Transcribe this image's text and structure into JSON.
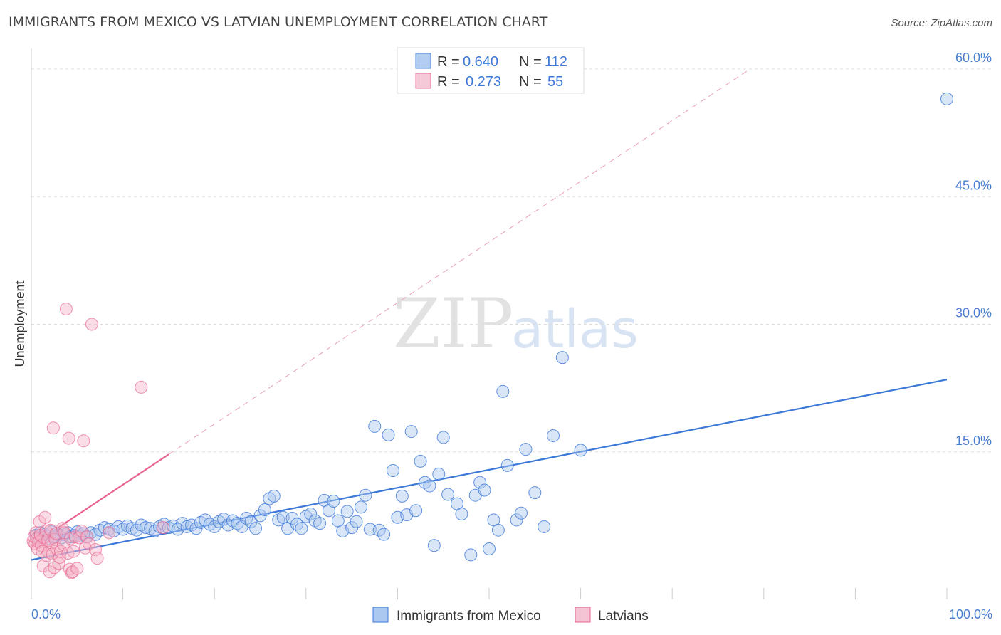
{
  "title": "IMMIGRANTS FROM MEXICO VS LATVIAN UNEMPLOYMENT CORRELATION CHART",
  "source": "Source: ZipAtlas.com",
  "watermark": {
    "left": "ZIP",
    "right": "atlas"
  },
  "colors": {
    "blue": "#3c78d8",
    "blue_fill": "#aac8f0",
    "pink": "#e8648e",
    "pink_fill": "#f5b4c8",
    "grid": "#dddddd",
    "tick_label": "#4a7fd0"
  },
  "legend": {
    "rows": [
      {
        "r_label": "R =",
        "r_value": "0.640",
        "n_label": "N =",
        "n_value": "112"
      },
      {
        "r_label": "R =",
        "r_value": "0.273",
        "n_label": "N =",
        "n_value": "55"
      }
    ]
  },
  "chart_data": {
    "type": "scatter",
    "title": "IMMIGRANTS FROM MEXICO VS LATVIAN UNEMPLOYMENT CORRELATION CHART",
    "xlabel": "",
    "ylabel": "Unemployment",
    "xlim": [
      0,
      100
    ],
    "ylim": [
      0,
      62
    ],
    "x_tick_labels": [
      "0.0%",
      "100.0%"
    ],
    "y_ticks": [
      15,
      30,
      45,
      60
    ],
    "y_tick_labels": [
      "15.0%",
      "30.0%",
      "45.0%",
      "60.0%"
    ],
    "grid": true,
    "legend_position": "top-center",
    "series": [
      {
        "name": "Immigrants from Mexico",
        "color": "#3c78d8",
        "R": 0.64,
        "N": 112,
        "trend": {
          "x": [
            0,
            100
          ],
          "y": [
            2.3,
            23.5
          ],
          "style": "solid"
        },
        "points": [
          [
            0.5,
            5.2
          ],
          [
            0.8,
            4.9
          ],
          [
            1.0,
            5.5
          ],
          [
            1.2,
            5.0
          ],
          [
            1.5,
            5.3
          ],
          [
            1.8,
            4.8
          ],
          [
            2.0,
            5.1
          ],
          [
            2.2,
            5.6
          ],
          [
            2.5,
            5.0
          ],
          [
            2.8,
            5.4
          ],
          [
            3.0,
            5.2
          ],
          [
            3.3,
            4.9
          ],
          [
            3.6,
            5.3
          ],
          [
            4.0,
            5.5
          ],
          [
            4.3,
            5.0
          ],
          [
            4.7,
            5.2
          ],
          [
            5.0,
            5.6
          ],
          [
            5.3,
            5.1
          ],
          [
            5.7,
            5.4
          ],
          [
            6.0,
            5.0
          ],
          [
            6.5,
            5.5
          ],
          [
            7.0,
            5.3
          ],
          [
            7.5,
            5.8
          ],
          [
            8.0,
            6.1
          ],
          [
            8.5,
            5.9
          ],
          [
            9.0,
            5.7
          ],
          [
            9.5,
            6.2
          ],
          [
            10.0,
            5.9
          ],
          [
            10.5,
            6.3
          ],
          [
            11.0,
            6.0
          ],
          [
            11.5,
            5.8
          ],
          [
            12.0,
            6.4
          ],
          [
            12.5,
            6.1
          ],
          [
            13.0,
            6.0
          ],
          [
            13.5,
            5.7
          ],
          [
            14.0,
            6.2
          ],
          [
            14.5,
            6.5
          ],
          [
            15.0,
            6.1
          ],
          [
            15.5,
            6.3
          ],
          [
            16.0,
            5.9
          ],
          [
            16.5,
            6.6
          ],
          [
            17.0,
            6.2
          ],
          [
            17.5,
            6.4
          ],
          [
            18.0,
            6.0
          ],
          [
            18.5,
            6.7
          ],
          [
            19.0,
            7.0
          ],
          [
            19.5,
            6.5
          ],
          [
            20.0,
            6.2
          ],
          [
            20.5,
            6.8
          ],
          [
            21.0,
            7.1
          ],
          [
            21.5,
            6.4
          ],
          [
            22.0,
            6.9
          ],
          [
            22.5,
            6.6
          ],
          [
            23.0,
            6.2
          ],
          [
            23.5,
            7.2
          ],
          [
            24.0,
            6.8
          ],
          [
            24.5,
            6.0
          ],
          [
            25.0,
            7.5
          ],
          [
            25.5,
            8.2
          ],
          [
            26.0,
            9.5
          ],
          [
            26.5,
            9.8
          ],
          [
            27.0,
            7.0
          ],
          [
            27.5,
            7.3
          ],
          [
            28.0,
            6.0
          ],
          [
            28.5,
            7.2
          ],
          [
            29.0,
            6.5
          ],
          [
            29.5,
            6.0
          ],
          [
            30.0,
            7.4
          ],
          [
            30.5,
            7.7
          ],
          [
            31.0,
            6.9
          ],
          [
            31.5,
            6.6
          ],
          [
            32.0,
            9.3
          ],
          [
            32.5,
            8.1
          ],
          [
            33.0,
            9.2
          ],
          [
            33.5,
            6.9
          ],
          [
            34.0,
            5.7
          ],
          [
            34.5,
            8.0
          ],
          [
            35.0,
            6.1
          ],
          [
            35.5,
            6.8
          ],
          [
            36.0,
            8.5
          ],
          [
            36.5,
            9.9
          ],
          [
            37.0,
            5.9
          ],
          [
            37.5,
            18.0
          ],
          [
            38.0,
            5.8
          ],
          [
            38.5,
            5.3
          ],
          [
            39.0,
            17.0
          ],
          [
            39.5,
            12.8
          ],
          [
            40.0,
            7.3
          ],
          [
            40.5,
            9.8
          ],
          [
            41.0,
            7.6
          ],
          [
            41.5,
            17.4
          ],
          [
            42.0,
            8.1
          ],
          [
            42.5,
            13.9
          ],
          [
            43.0,
            11.4
          ],
          [
            43.5,
            11.0
          ],
          [
            44.0,
            4.0
          ],
          [
            44.5,
            12.4
          ],
          [
            45.0,
            16.7
          ],
          [
            45.5,
            10.0
          ],
          [
            46.5,
            8.9
          ],
          [
            47.0,
            7.7
          ],
          [
            48.0,
            2.9
          ],
          [
            48.5,
            9.9
          ],
          [
            49.0,
            11.4
          ],
          [
            49.5,
            10.5
          ],
          [
            50.0,
            3.6
          ],
          [
            50.5,
            7.0
          ],
          [
            51.0,
            5.8
          ],
          [
            51.5,
            22.1
          ],
          [
            52.0,
            13.4
          ],
          [
            53.0,
            7.0
          ],
          [
            53.5,
            7.8
          ],
          [
            54.0,
            15.3
          ],
          [
            55.0,
            10.2
          ],
          [
            56.0,
            6.2
          ],
          [
            57.0,
            16.9
          ],
          [
            58.0,
            26.1
          ],
          [
            60.0,
            15.2
          ],
          [
            100.0,
            56.5
          ],
          [
            2.5,
            5.1
          ]
        ]
      },
      {
        "name": "Latvians",
        "color": "#e8648e",
        "R": 0.273,
        "N": 55,
        "trend": {
          "x": [
            0,
            15
          ],
          "y": [
            4.0,
            14.7
          ],
          "style": "solid",
          "dashed_extension_to": [
            78.5,
            60.0
          ]
        },
        "points": [
          [
            0.2,
            4.5
          ],
          [
            0.3,
            5.0
          ],
          [
            0.4,
            4.2
          ],
          [
            0.5,
            5.5
          ],
          [
            0.6,
            4.8
          ],
          [
            0.7,
            3.6
          ],
          [
            0.8,
            4.4
          ],
          [
            0.9,
            6.8
          ],
          [
            1.0,
            5.2
          ],
          [
            1.1,
            4.0
          ],
          [
            1.2,
            3.3
          ],
          [
            1.3,
            1.6
          ],
          [
            1.4,
            4.9
          ],
          [
            1.5,
            7.3
          ],
          [
            1.6,
            5.7
          ],
          [
            1.7,
            2.8
          ],
          [
            1.8,
            4.6
          ],
          [
            1.9,
            3.2
          ],
          [
            2.0,
            0.9
          ],
          [
            2.1,
            5.8
          ],
          [
            2.2,
            4.3
          ],
          [
            2.3,
            3.0
          ],
          [
            2.4,
            17.8
          ],
          [
            2.5,
            1.4
          ],
          [
            2.6,
            4.7
          ],
          [
            2.7,
            5.4
          ],
          [
            2.8,
            3.6
          ],
          [
            3.0,
            1.9
          ],
          [
            3.1,
            2.6
          ],
          [
            3.2,
            3.3
          ],
          [
            3.4,
            6.0
          ],
          [
            3.5,
            4.1
          ],
          [
            3.6,
            5.5
          ],
          [
            3.8,
            31.8
          ],
          [
            4.0,
            3.1
          ],
          [
            4.1,
            16.6
          ],
          [
            4.2,
            1.2
          ],
          [
            4.3,
            4.8
          ],
          [
            4.4,
            0.8
          ],
          [
            4.5,
            0.9
          ],
          [
            4.6,
            3.3
          ],
          [
            4.8,
            5.0
          ],
          [
            5.0,
            1.3
          ],
          [
            5.2,
            4.9
          ],
          [
            5.5,
            5.7
          ],
          [
            5.7,
            16.3
          ],
          [
            5.9,
            3.7
          ],
          [
            6.1,
            5.0
          ],
          [
            6.3,
            4.2
          ],
          [
            6.6,
            30.0
          ],
          [
            7.0,
            3.5
          ],
          [
            7.2,
            2.5
          ],
          [
            8.5,
            5.5
          ],
          [
            12.0,
            22.6
          ],
          [
            14.4,
            6.1
          ]
        ]
      }
    ]
  }
}
